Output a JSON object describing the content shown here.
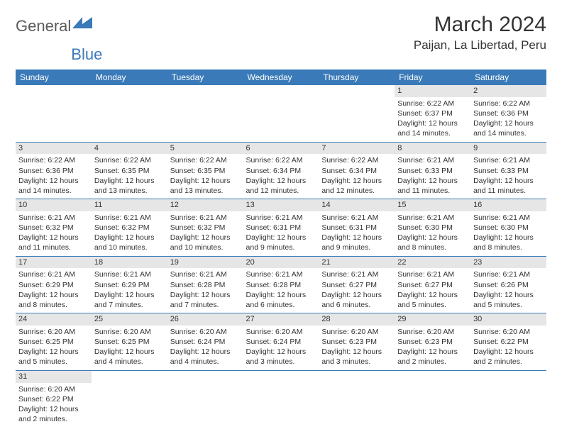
{
  "logo": {
    "general": "General",
    "blue": "Blue"
  },
  "title": "March 2024",
  "location": "Paijan, La Libertad, Peru",
  "colors": {
    "header_bg": "#3a7ab8",
    "header_text": "#ffffff",
    "daynum_bg": "#e6e6e6",
    "row_divider": "#3a7ab8",
    "body_text": "#333333",
    "logo_gray": "#5a5a5a",
    "logo_blue": "#3a7ab8",
    "background": "#ffffff"
  },
  "typography": {
    "month_title_fontsize": 30,
    "location_fontsize": 17,
    "day_header_fontsize": 12,
    "cell_fontsize": 10.5,
    "daynum_fontsize": 11,
    "logo_fontsize": 22
  },
  "day_headers": [
    "Sunday",
    "Monday",
    "Tuesday",
    "Wednesday",
    "Thursday",
    "Friday",
    "Saturday"
  ],
  "weeks": [
    [
      null,
      null,
      null,
      null,
      null,
      {
        "n": "1",
        "sunrise": "6:22 AM",
        "sunset": "6:37 PM",
        "daylight": "12 hours and 14 minutes."
      },
      {
        "n": "2",
        "sunrise": "6:22 AM",
        "sunset": "6:36 PM",
        "daylight": "12 hours and 14 minutes."
      }
    ],
    [
      {
        "n": "3",
        "sunrise": "6:22 AM",
        "sunset": "6:36 PM",
        "daylight": "12 hours and 14 minutes."
      },
      {
        "n": "4",
        "sunrise": "6:22 AM",
        "sunset": "6:35 PM",
        "daylight": "12 hours and 13 minutes."
      },
      {
        "n": "5",
        "sunrise": "6:22 AM",
        "sunset": "6:35 PM",
        "daylight": "12 hours and 13 minutes."
      },
      {
        "n": "6",
        "sunrise": "6:22 AM",
        "sunset": "6:34 PM",
        "daylight": "12 hours and 12 minutes."
      },
      {
        "n": "7",
        "sunrise": "6:22 AM",
        "sunset": "6:34 PM",
        "daylight": "12 hours and 12 minutes."
      },
      {
        "n": "8",
        "sunrise": "6:21 AM",
        "sunset": "6:33 PM",
        "daylight": "12 hours and 11 minutes."
      },
      {
        "n": "9",
        "sunrise": "6:21 AM",
        "sunset": "6:33 PM",
        "daylight": "12 hours and 11 minutes."
      }
    ],
    [
      {
        "n": "10",
        "sunrise": "6:21 AM",
        "sunset": "6:32 PM",
        "daylight": "12 hours and 11 minutes."
      },
      {
        "n": "11",
        "sunrise": "6:21 AM",
        "sunset": "6:32 PM",
        "daylight": "12 hours and 10 minutes."
      },
      {
        "n": "12",
        "sunrise": "6:21 AM",
        "sunset": "6:32 PM",
        "daylight": "12 hours and 10 minutes."
      },
      {
        "n": "13",
        "sunrise": "6:21 AM",
        "sunset": "6:31 PM",
        "daylight": "12 hours and 9 minutes."
      },
      {
        "n": "14",
        "sunrise": "6:21 AM",
        "sunset": "6:31 PM",
        "daylight": "12 hours and 9 minutes."
      },
      {
        "n": "15",
        "sunrise": "6:21 AM",
        "sunset": "6:30 PM",
        "daylight": "12 hours and 8 minutes."
      },
      {
        "n": "16",
        "sunrise": "6:21 AM",
        "sunset": "6:30 PM",
        "daylight": "12 hours and 8 minutes."
      }
    ],
    [
      {
        "n": "17",
        "sunrise": "6:21 AM",
        "sunset": "6:29 PM",
        "daylight": "12 hours and 8 minutes."
      },
      {
        "n": "18",
        "sunrise": "6:21 AM",
        "sunset": "6:29 PM",
        "daylight": "12 hours and 7 minutes."
      },
      {
        "n": "19",
        "sunrise": "6:21 AM",
        "sunset": "6:28 PM",
        "daylight": "12 hours and 7 minutes."
      },
      {
        "n": "20",
        "sunrise": "6:21 AM",
        "sunset": "6:28 PM",
        "daylight": "12 hours and 6 minutes."
      },
      {
        "n": "21",
        "sunrise": "6:21 AM",
        "sunset": "6:27 PM",
        "daylight": "12 hours and 6 minutes."
      },
      {
        "n": "22",
        "sunrise": "6:21 AM",
        "sunset": "6:27 PM",
        "daylight": "12 hours and 5 minutes."
      },
      {
        "n": "23",
        "sunrise": "6:21 AM",
        "sunset": "6:26 PM",
        "daylight": "12 hours and 5 minutes."
      }
    ],
    [
      {
        "n": "24",
        "sunrise": "6:20 AM",
        "sunset": "6:25 PM",
        "daylight": "12 hours and 5 minutes."
      },
      {
        "n": "25",
        "sunrise": "6:20 AM",
        "sunset": "6:25 PM",
        "daylight": "12 hours and 4 minutes."
      },
      {
        "n": "26",
        "sunrise": "6:20 AM",
        "sunset": "6:24 PM",
        "daylight": "12 hours and 4 minutes."
      },
      {
        "n": "27",
        "sunrise": "6:20 AM",
        "sunset": "6:24 PM",
        "daylight": "12 hours and 3 minutes."
      },
      {
        "n": "28",
        "sunrise": "6:20 AM",
        "sunset": "6:23 PM",
        "daylight": "12 hours and 3 minutes."
      },
      {
        "n": "29",
        "sunrise": "6:20 AM",
        "sunset": "6:23 PM",
        "daylight": "12 hours and 2 minutes."
      },
      {
        "n": "30",
        "sunrise": "6:20 AM",
        "sunset": "6:22 PM",
        "daylight": "12 hours and 2 minutes."
      }
    ],
    [
      {
        "n": "31",
        "sunrise": "6:20 AM",
        "sunset": "6:22 PM",
        "daylight": "12 hours and 2 minutes."
      },
      null,
      null,
      null,
      null,
      null,
      null
    ]
  ],
  "labels": {
    "sunrise": "Sunrise:",
    "sunset": "Sunset:",
    "daylight": "Daylight:"
  }
}
